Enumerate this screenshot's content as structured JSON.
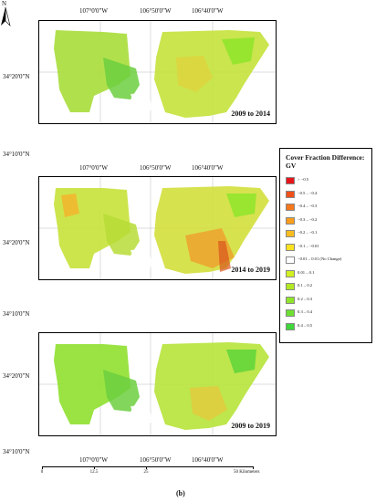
{
  "figure": {
    "north_label": "N",
    "caption": "(b)"
  },
  "coords": {
    "lon": [
      "107°0'0\"W",
      "106°50'0\"W",
      "106°40'0\"W"
    ],
    "lat": [
      "34°20'0\"N",
      "34°10'0\"N"
    ]
  },
  "panels": [
    {
      "label": "2009 to 2014"
    },
    {
      "label": "2014 to 2019"
    },
    {
      "label": "2009 to 2019"
    }
  ],
  "legend": {
    "title": "Cover Fraction Difference: GV",
    "items": [
      {
        "label": "> −0.5",
        "color": "#e8141b"
      },
      {
        "label": "−0.5 – −0.4",
        "color": "#f2501a"
      },
      {
        "label": "−0.4 – −0.3",
        "color": "#f6781b"
      },
      {
        "label": "−0.3 – −0.2",
        "color": "#f99d1c"
      },
      {
        "label": "−0.2 – −0.1",
        "color": "#fbbd1e"
      },
      {
        "label": "−0.1 – −0.01",
        "color": "#fce21f"
      },
      {
        "label": "−0.01 – 0.01 (No Change)",
        "color": "#ffffff"
      },
      {
        "label": "0.01 – 0.1",
        "color": "#d2ef1f"
      },
      {
        "label": "0.1 – 0.2",
        "color": "#b1ea24"
      },
      {
        "label": "0.2 – 0.3",
        "color": "#8fe52a"
      },
      {
        "label": "0.3 – 0.4",
        "color": "#6de031"
      },
      {
        "label": "0.4 – 0.5",
        "color": "#3fd73a"
      }
    ]
  },
  "scalebar": {
    "ticks": [
      "0",
      "12.5",
      "25",
      "50 Kilometers"
    ]
  }
}
